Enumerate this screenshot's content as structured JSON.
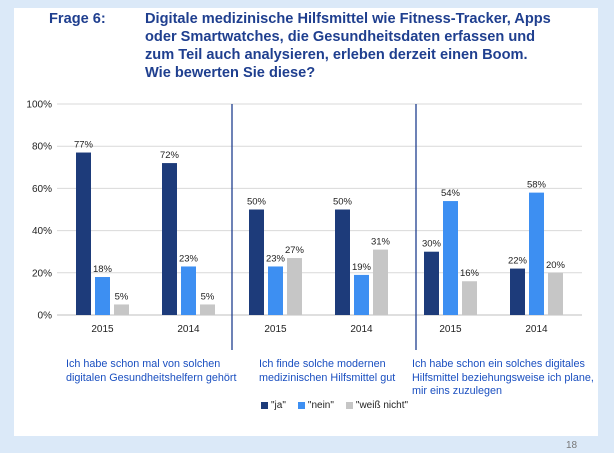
{
  "header": {
    "frage": "Frage 6:",
    "question_lines": [
      "Digitale medizinische Hilfsmittel wie Fitness-Tracker, Apps",
      "oder Smartwatches, die Gesundheitsdaten erfassen und",
      "zum Teil auch analysieren, erleben derzeit einen Boom.",
      "Wie bewerten Sie diese?"
    ]
  },
  "chart_data": {
    "type": "bar",
    "ylim": [
      0,
      100
    ],
    "yticks": [
      "0%",
      "20%",
      "40%",
      "60%",
      "80%",
      "100%"
    ],
    "series_names": [
      "\"ja\"",
      "\"nein\"",
      "\"weiß nicht\""
    ],
    "colors": [
      "#1d3b7a",
      "#3d8ff2",
      "#c6c6c6"
    ],
    "groups": [
      {
        "caption": [
          "Ich habe schon mal von solchen",
          "digitalen Gesundheitshelfern gehört"
        ],
        "years": [
          {
            "year": "2015",
            "values": [
              77,
              18,
              5
            ],
            "labels": [
              "77%",
              "18%",
              "5%"
            ]
          },
          {
            "year": "2014",
            "values": [
              72,
              23,
              5
            ],
            "labels": [
              "72%",
              "23%",
              "5%"
            ]
          }
        ]
      },
      {
        "caption": [
          "Ich finde solche modernen",
          "medizinischen Hilfsmittel gut"
        ],
        "years": [
          {
            "year": "2015",
            "values": [
              50,
              23,
              27
            ],
            "labels": [
              "50%",
              "23%",
              "27%"
            ]
          },
          {
            "year": "2014",
            "values": [
              50,
              19,
              31
            ],
            "labels": [
              "50%",
              "19%",
              "31%"
            ]
          }
        ]
      },
      {
        "caption": [
          "Ich habe schon ein solches digitales",
          "Hilfsmittel beziehungsweise ich plane,",
          "mir eins zuzulegen"
        ],
        "years": [
          {
            "year": "2015",
            "values": [
              30,
              54,
              16
            ],
            "labels": [
              "30%",
              "54%",
              "16%"
            ]
          },
          {
            "year": "2014",
            "values": [
              22,
              58,
              20
            ],
            "labels": [
              "22%",
              "58%",
              "20%"
            ]
          }
        ]
      }
    ]
  },
  "legend": [
    "\"ja\"",
    "\"nein\"",
    "\"weiß nicht\""
  ],
  "page_number": "18"
}
